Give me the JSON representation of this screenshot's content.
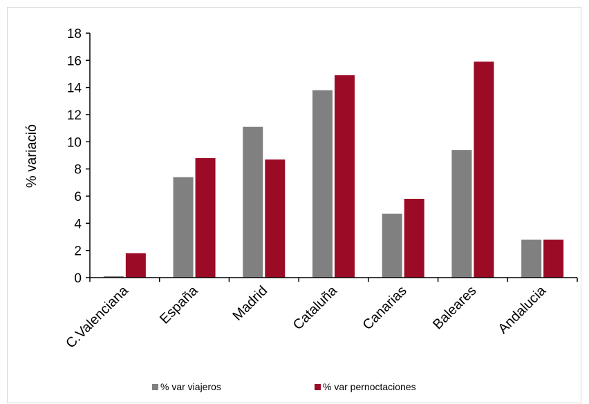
{
  "chart_data": {
    "type": "bar",
    "ylabel": "% variació",
    "xlabel": "",
    "ylim": [
      0,
      18
    ],
    "yticks": [
      0,
      2,
      4,
      6,
      8,
      10,
      12,
      14,
      16,
      18
    ],
    "grid": false,
    "legend_position": "bottom",
    "categories": [
      "C.Valenciana",
      "España",
      "Madrid",
      "Cataluña",
      "Canarias",
      "Baleares",
      "Andalucia"
    ],
    "series": [
      {
        "name": "% var viajeros",
        "color": "#808080",
        "values": [
          0.1,
          7.4,
          11.1,
          13.8,
          4.7,
          9.4,
          2.8
        ]
      },
      {
        "name": "% var pernoctaciones",
        "color": "#9b0b25",
        "values": [
          1.8,
          8.8,
          8.7,
          14.9,
          5.8,
          15.9,
          2.8
        ]
      }
    ]
  }
}
